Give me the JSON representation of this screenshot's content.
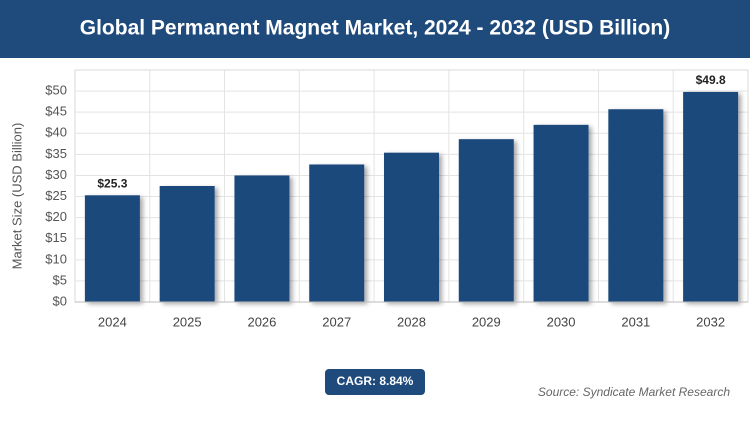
{
  "chart_data": {
    "type": "bar",
    "title": "Global Permanent Magnet Market, 2024 - 2032 (USD Billion)",
    "y_label": "Market Size (USD Billion)",
    "categories": [
      "2024",
      "2025",
      "2026",
      "2027",
      "2028",
      "2029",
      "2030",
      "2031",
      "2032"
    ],
    "values": [
      25.3,
      27.5,
      30.0,
      32.6,
      35.4,
      38.6,
      42.0,
      45.7,
      49.8
    ],
    "value_labels": [
      "$25.3",
      null,
      null,
      null,
      null,
      null,
      null,
      null,
      "$49.8"
    ],
    "color": "#1f4a7c",
    "ylim": [
      0,
      55
    ],
    "yticks": [
      {
        "value": 0,
        "label": "$0"
      },
      {
        "value": 5,
        "label": "$5"
      },
      {
        "value": 10,
        "label": "$10"
      },
      {
        "value": 15,
        "label": "$15"
      },
      {
        "value": 20,
        "label": "$20"
      },
      {
        "value": 25,
        "label": "$25"
      },
      {
        "value": 30,
        "label": "$30"
      },
      {
        "value": 35,
        "label": "$35"
      },
      {
        "value": 40,
        "label": "$40"
      },
      {
        "value": 45,
        "label": "$45"
      },
      {
        "value": 50,
        "label": "$50"
      }
    ],
    "grid": true,
    "annotation": "CAGR: 8.84%",
    "source": "Source: Syndicate Market Research"
  }
}
